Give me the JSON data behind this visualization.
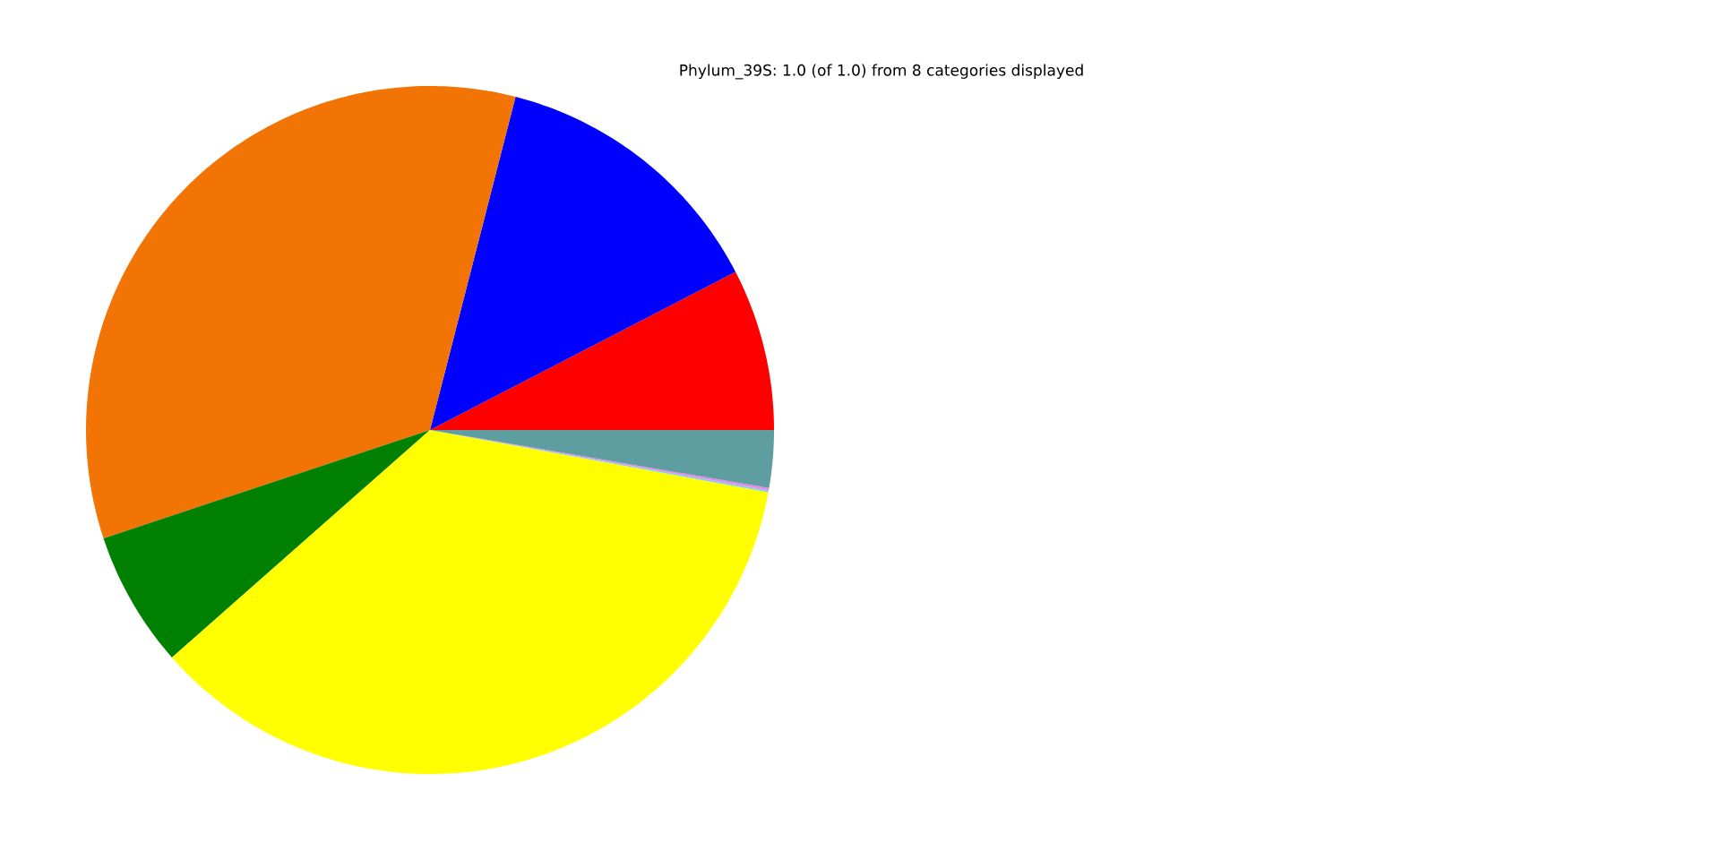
{
  "chart_data": {
    "type": "pie",
    "title": "Phylum_39S: 1.0 (of 1.0) from 8 categories displayed",
    "categories": [
      null,
      null,
      null,
      null,
      null,
      null,
      null,
      null
    ],
    "values": [
      7.6,
      13.4,
      34.1,
      6.4,
      35.6,
      0.1,
      0.1,
      2.7
    ],
    "colors": [
      "#ff0000",
      "#0000ff",
      "#f27405",
      "#008000",
      "#ffff00",
      "#87ceeb",
      "#ee82ee",
      "#5f9ea0"
    ]
  }
}
